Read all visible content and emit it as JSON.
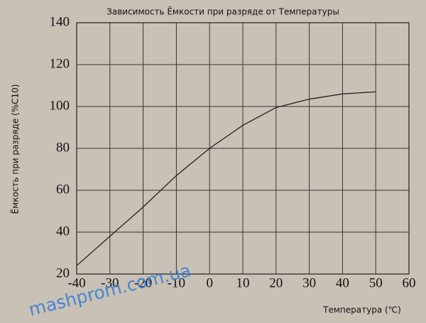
{
  "chart_data": {
    "type": "line",
    "title": "Зависимость Ёмкости при разряде от Температуры",
    "x_label": "Температура (℃)",
    "y_label": "Ёмкость при разряде (%C10)",
    "watermark": "mashprom.com.ua",
    "x": [
      -40,
      -30,
      -20,
      -10,
      0,
      10,
      20,
      30,
      40,
      50
    ],
    "values": [
      24,
      38,
      52,
      67,
      80,
      91,
      99.5,
      103.5,
      106,
      107
    ],
    "color": "#222222",
    "xlim": [
      -40,
      60
    ],
    "xticks": [
      -40,
      -30,
      -20,
      -10,
      0,
      10,
      20,
      30,
      40,
      50,
      60
    ],
    "ylim": [
      20,
      140
    ],
    "yticks": [
      20,
      40,
      60,
      80,
      100,
      120,
      140
    ],
    "grid": true
  }
}
